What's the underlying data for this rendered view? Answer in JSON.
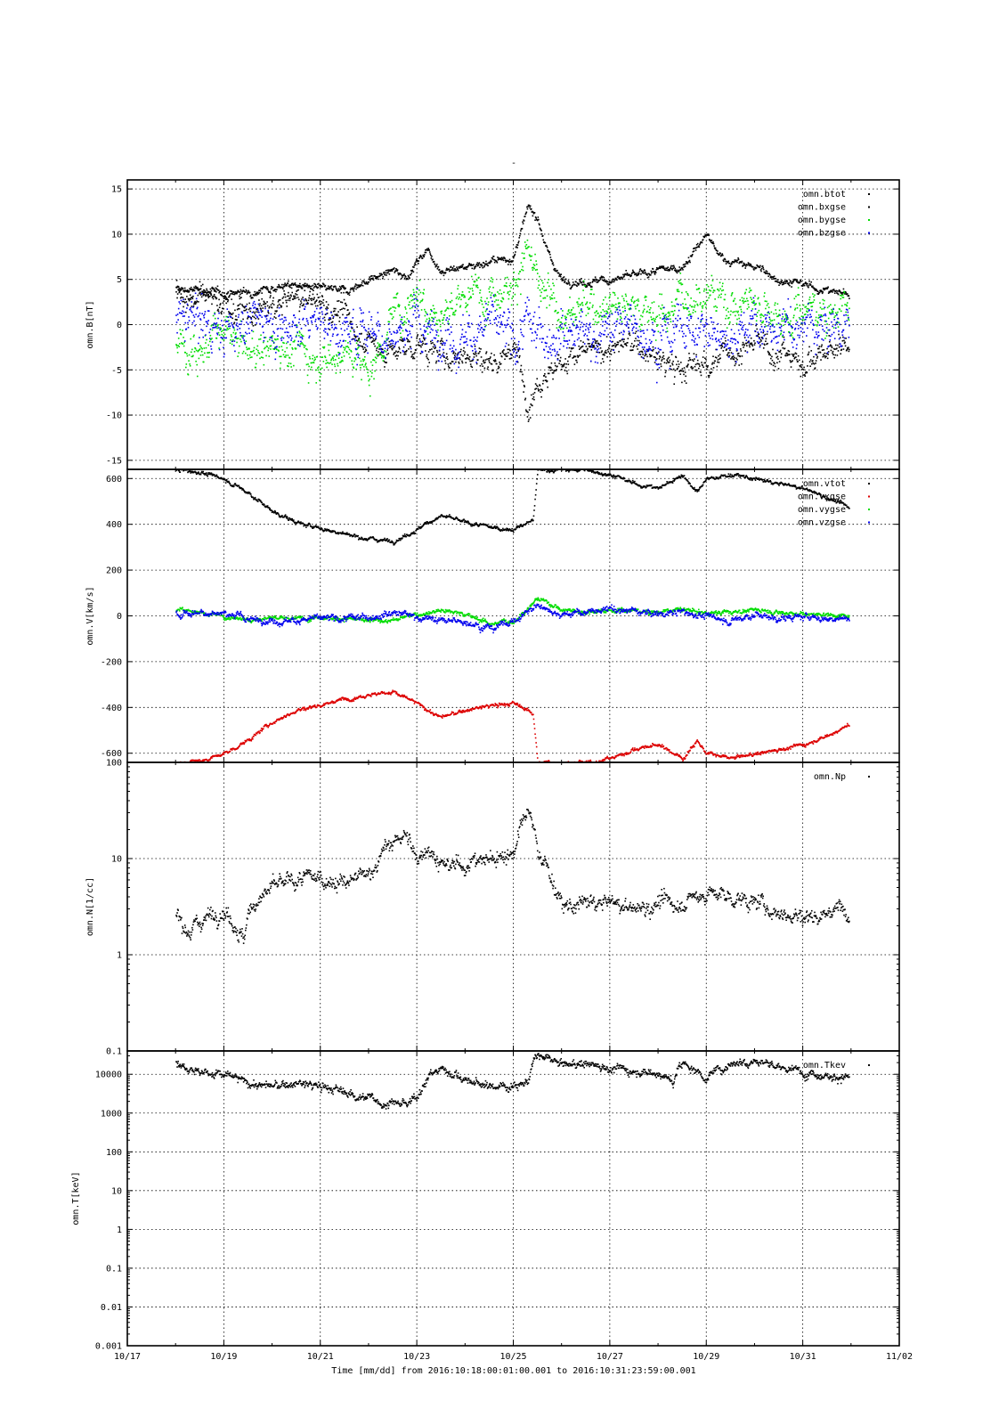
{
  "figure": {
    "title": "-",
    "xlabel": "Time [mm/dd]  from 2016:10:18:00:01:00.001  to  2016:10:31:23:59:00.001"
  },
  "chart_data": [
    {
      "type": "scatter",
      "ylabel": "omn.B[nT]",
      "ylim": [
        -16,
        16
      ],
      "yscale": "linear",
      "yticks": [
        {
          "v": -15,
          "label": "-15"
        },
        {
          "v": -10,
          "label": "-10"
        },
        {
          "v": -5,
          "label": "-5"
        },
        {
          "v": 0,
          "label": "0"
        },
        {
          "v": 5,
          "label": "5"
        },
        {
          "v": 10,
          "label": "10"
        },
        {
          "v": 15,
          "label": "15"
        }
      ],
      "legend_position": "top-right",
      "series": [
        {
          "name": "omn.btot",
          "color": "#000000",
          "spread": 0.3,
          "x": [
            18.0,
            18.5,
            19.0,
            19.5,
            20.0,
            20.5,
            21.0,
            21.5,
            22.0,
            22.5,
            22.8,
            23.0,
            23.2,
            23.5,
            24.0,
            24.5,
            25.0,
            25.3,
            25.5,
            25.7,
            26.0,
            26.5,
            27.0,
            27.5,
            28.0,
            28.5,
            29.0,
            29.2,
            29.5,
            30.0,
            30.5,
            31.0,
            31.5,
            31.95
          ],
          "y": [
            4.0,
            3.8,
            3.5,
            3.7,
            4.2,
            4.5,
            4.0,
            3.8,
            5.0,
            6.0,
            5.5,
            7.0,
            8.5,
            6.0,
            6.5,
            7.0,
            7.5,
            13.0,
            12.0,
            8.0,
            5.0,
            4.8,
            5.0,
            5.5,
            6.0,
            6.5,
            10.0,
            8.0,
            7.0,
            6.5,
            5.0,
            4.5,
            3.8,
            3.5
          ]
        },
        {
          "name": "omn.bxgse",
          "color": "#000000",
          "spread": 1.0,
          "x": [
            18.0,
            18.5,
            19.0,
            19.5,
            20.0,
            20.5,
            21.0,
            21.5,
            22.0,
            22.5,
            23.0,
            23.5,
            24.0,
            24.5,
            25.0,
            25.3,
            25.5,
            26.0,
            26.5,
            27.0,
            27.5,
            28.0,
            28.5,
            29.0,
            29.5,
            30.0,
            30.5,
            31.0,
            31.5,
            31.95
          ],
          "y": [
            3.5,
            3.0,
            2.5,
            1.0,
            2.0,
            3.0,
            2.5,
            1.0,
            -2.0,
            -3.0,
            -2.0,
            -3.5,
            -3.0,
            -4.0,
            -2.5,
            -8.0,
            -6.0,
            -4.0,
            -3.0,
            -2.5,
            -2.0,
            -4.0,
            -5.0,
            -4.0,
            -3.0,
            -2.0,
            -3.0,
            -4.0,
            -3.0,
            -2.0
          ]
        },
        {
          "name": "omn.bygse",
          "color": "#00dd00",
          "spread": 1.5,
          "x": [
            18.0,
            18.5,
            19.0,
            19.5,
            20.0,
            20.5,
            21.0,
            21.5,
            22.0,
            22.5,
            23.0,
            23.5,
            24.0,
            24.5,
            25.0,
            25.3,
            25.5,
            26.0,
            26.5,
            27.0,
            27.5,
            28.0,
            28.5,
            29.0,
            29.5,
            30.0,
            30.5,
            31.0,
            31.5,
            31.95
          ],
          "y": [
            -2.0,
            -2.5,
            -1.0,
            -3.0,
            -2.0,
            -2.5,
            -3.5,
            -3.0,
            -5.0,
            1.0,
            4.0,
            1.0,
            3.0,
            4.0,
            5.0,
            8.0,
            4.0,
            1.0,
            2.0,
            3.0,
            2.0,
            1.0,
            3.0,
            4.0,
            2.0,
            3.0,
            1.0,
            2.0,
            1.5,
            2.0
          ]
        },
        {
          "name": "omn.bzgse",
          "color": "#0000ee",
          "spread": 1.7,
          "x": [
            18.0,
            18.5,
            19.0,
            19.5,
            20.0,
            20.5,
            21.0,
            21.5,
            22.0,
            22.5,
            23.0,
            23.5,
            24.0,
            24.5,
            25.0,
            25.3,
            25.5,
            26.0,
            26.5,
            27.0,
            27.5,
            28.0,
            28.5,
            29.0,
            29.5,
            30.0,
            30.5,
            31.0,
            31.5,
            31.95
          ],
          "y": [
            0.0,
            1.0,
            -1.0,
            1.0,
            0.5,
            0.0,
            1.0,
            -1.0,
            0.0,
            -1.0,
            0.0,
            -1.0,
            -1.0,
            0.0,
            -2.0,
            0.0,
            -1.0,
            0.0,
            -1.0,
            -0.5,
            0.0,
            -1.0,
            0.0,
            -1.0,
            -0.5,
            0.0,
            -1.0,
            0.0,
            -0.5,
            0.0
          ]
        }
      ]
    },
    {
      "type": "scatter",
      "ylabel": "omn.V[km/s]",
      "ylim": [
        -640,
        640
      ],
      "yscale": "linear",
      "yticks": [
        {
          "v": -600,
          "label": "-600"
        },
        {
          "v": -400,
          "label": "-400"
        },
        {
          "v": -200,
          "label": "-200"
        },
        {
          "v": 0,
          "label": "0"
        },
        {
          "v": 200,
          "label": "200"
        },
        {
          "v": 400,
          "label": "400"
        },
        {
          "v": 600,
          "label": "600"
        }
      ],
      "legend_position": "top-right",
      "series": [
        {
          "name": "omn.vtot",
          "color": "#000000",
          "spread": 6,
          "x": [
            18.0,
            18.5,
            19.0,
            19.5,
            20.0,
            20.5,
            21.0,
            21.5,
            22.0,
            22.5,
            23.0,
            23.3,
            23.5,
            24.0,
            24.5,
            25.0,
            25.4,
            25.5,
            26.0,
            26.5,
            27.0,
            27.5,
            28.0,
            28.5,
            28.8,
            29.0,
            29.5,
            30.0,
            30.5,
            31.0,
            31.5,
            31.95
          ],
          "y": [
            640,
            630,
            600,
            540,
            460,
            410,
            385,
            360,
            340,
            330,
            380,
            420,
            440,
            410,
            390,
            380,
            420,
            640,
            640,
            640,
            620,
            580,
            560,
            620,
            540,
            600,
            620,
            600,
            580,
            560,
            520,
            475
          ]
        },
        {
          "name": "omn.vxgse",
          "color": "#dd0000",
          "spread": 6,
          "x": [
            18.0,
            18.5,
            19.0,
            19.5,
            20.0,
            20.5,
            21.0,
            21.5,
            22.0,
            22.5,
            23.0,
            23.3,
            23.5,
            24.0,
            24.5,
            25.0,
            25.4,
            25.5,
            26.0,
            26.5,
            27.0,
            27.5,
            28.0,
            28.5,
            28.8,
            29.0,
            29.5,
            30.0,
            30.5,
            31.0,
            31.5,
            31.95
          ],
          "y": [
            -640,
            -630,
            -600,
            -540,
            -460,
            -410,
            -385,
            -360,
            -340,
            -330,
            -380,
            -420,
            -440,
            -410,
            -390,
            -380,
            -420,
            -640,
            -640,
            -640,
            -620,
            -580,
            -560,
            -620,
            -540,
            -600,
            -620,
            -600,
            -580,
            -560,
            -520,
            -475
          ]
        },
        {
          "name": "omn.vygse",
          "color": "#00dd00",
          "spread": 7,
          "x": [
            18.0,
            18.5,
            19.0,
            19.5,
            20.0,
            20.5,
            21.0,
            21.5,
            22.0,
            22.5,
            23.0,
            23.5,
            24.0,
            24.5,
            25.0,
            25.5,
            26.0,
            26.5,
            27.0,
            27.5,
            28.0,
            28.5,
            29.0,
            29.5,
            30.0,
            30.5,
            31.0,
            31.5,
            31.95
          ],
          "y": [
            30,
            20,
            0,
            -10,
            -5,
            -10,
            0,
            -10,
            -20,
            -15,
            10,
            30,
            10,
            -30,
            -20,
            80,
            30,
            20,
            30,
            25,
            20,
            30,
            15,
            20,
            30,
            20,
            10,
            10,
            0
          ]
        },
        {
          "name": "omn.vzgse",
          "color": "#0000ee",
          "spread": 10,
          "x": [
            18.0,
            18.5,
            19.0,
            19.5,
            20.0,
            20.5,
            21.0,
            21.5,
            22.0,
            22.5,
            23.0,
            23.5,
            24.0,
            24.5,
            25.0,
            25.5,
            26.0,
            26.5,
            27.0,
            27.5,
            28.0,
            28.5,
            29.0,
            29.5,
            30.0,
            30.5,
            31.0,
            31.5,
            31.95
          ],
          "y": [
            10,
            20,
            15,
            -10,
            -20,
            -15,
            -10,
            -10,
            0,
            20,
            0,
            -20,
            -20,
            -50,
            -20,
            50,
            10,
            20,
            30,
            25,
            10,
            20,
            0,
            -20,
            10,
            -10,
            0,
            -10,
            -10
          ]
        }
      ]
    },
    {
      "type": "scatter",
      "ylabel": "omn.N[1/cc]",
      "ylim": [
        0.1,
        100
      ],
      "yscale": "log",
      "yticks": [
        {
          "v": 0.1,
          "label": "0.1"
        },
        {
          "v": 1,
          "label": "1"
        },
        {
          "v": 10,
          "label": "10"
        },
        {
          "v": 100,
          "label": "100"
        }
      ],
      "legend_position": "top-right",
      "series": [
        {
          "name": "omn.Np",
          "color": "#000000",
          "spread": 0.06,
          "x": [
            18.0,
            18.3,
            18.6,
            18.8,
            19.0,
            19.2,
            19.4,
            19.6,
            20.0,
            20.5,
            21.0,
            21.5,
            22.0,
            22.5,
            22.7,
            23.0,
            23.2,
            23.5,
            24.0,
            24.5,
            25.0,
            25.3,
            25.5,
            25.8,
            26.0,
            26.5,
            27.0,
            27.5,
            28.0,
            28.5,
            29.0,
            29.5,
            30.0,
            30.5,
            31.0,
            31.5,
            31.95
          ],
          "y": [
            2.5,
            1.8,
            2.5,
            2.8,
            3.0,
            2.2,
            1.4,
            3.5,
            5.0,
            6.0,
            6.5,
            5.5,
            7.0,
            15.0,
            18.0,
            10.0,
            14.0,
            8.0,
            9.0,
            10.0,
            12.0,
            30.0,
            12.0,
            6.0,
            3.0,
            3.5,
            3.5,
            3.0,
            3.5,
            3.5,
            4.5,
            4.0,
            3.5,
            2.8,
            2.5,
            2.8,
            3.2
          ]
        }
      ]
    },
    {
      "type": "scatter",
      "ylabel": "omn.T[keV]",
      "ylim": [
        0.001,
        40000
      ],
      "yscale": "log",
      "yticks": [
        {
          "v": 0.001,
          "label": "0.001"
        },
        {
          "v": 0.01,
          "label": "0.01"
        },
        {
          "v": 0.1,
          "label": "0.1"
        },
        {
          "v": 1,
          "label": "1"
        },
        {
          "v": 10,
          "label": "10"
        },
        {
          "v": 100,
          "label": "100"
        },
        {
          "v": 1000,
          "label": "1000"
        },
        {
          "v": 10000,
          "label": "10000"
        }
      ],
      "legend_position": "top-right",
      "series": [
        {
          "name": "omn.Tkev",
          "color": "#000000",
          "spread": 0.08,
          "x": [
            18.0,
            18.5,
            19.0,
            19.5,
            20.0,
            20.5,
            21.0,
            21.5,
            22.0,
            22.3,
            22.5,
            22.8,
            23.0,
            23.5,
            24.0,
            24.5,
            25.0,
            25.3,
            25.5,
            26.0,
            26.5,
            27.0,
            27.5,
            28.0,
            28.3,
            28.5,
            29.0,
            29.5,
            30.0,
            30.5,
            31.0,
            31.5,
            31.95
          ],
          "y": [
            20000,
            12000,
            10000,
            6000,
            5000,
            6000,
            5000,
            3500,
            2500,
            1800,
            2000,
            1500,
            3000,
            15000,
            7000,
            5000,
            5500,
            7000,
            30000,
            18000,
            20000,
            15000,
            13000,
            11000,
            6000,
            20000,
            8000,
            20000,
            25000,
            15000,
            12000,
            10000,
            8000
          ]
        }
      ]
    }
  ],
  "x_axis": {
    "range": [
      "10/17",
      "11/02"
    ],
    "ticks": [
      {
        "v": 17,
        "label": "10/17"
      },
      {
        "v": 19,
        "label": "10/19"
      },
      {
        "v": 21,
        "label": "10/21"
      },
      {
        "v": 23,
        "label": "10/23"
      },
      {
        "v": 25,
        "label": "10/25"
      },
      {
        "v": 27,
        "label": "10/27"
      },
      {
        "v": 29,
        "label": "10/29"
      },
      {
        "v": 31,
        "label": "10/31"
      },
      {
        "v": 33,
        "label": "11/02"
      }
    ]
  }
}
